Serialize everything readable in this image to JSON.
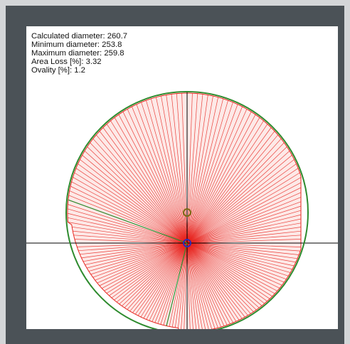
{
  "measurement": {
    "calculated_diameter_label": "Calculated diameter: 260.7",
    "minimum_diameter_label": "Minimum diameter: 253.8",
    "maximum_diameter_label": "Maximum diameter: 259.8",
    "area_loss_label": "Area Loss [%]: 3.32",
    "ovality_label": "Ovality [%]: 1.2"
  },
  "colors": {
    "window_background": "#d4d6d8",
    "frame_background": "#4b5257",
    "plot_background": "#ffffff",
    "profile_fill": "#f4b8b8",
    "profile_ray": "#e8251f",
    "fitted_circle": "#2e8b2e",
    "fitted_center": "#7a6a14",
    "pipe_center": "#2b2bb8",
    "axis_line": "#000000"
  },
  "legend_items": [
    {
      "name": "fitted-circle",
      "color": "#2e8b2e"
    },
    {
      "name": "measured-profile",
      "color": "#e8251f"
    },
    {
      "name": "pipe-center",
      "color": "#2b2bb8"
    }
  ]
}
